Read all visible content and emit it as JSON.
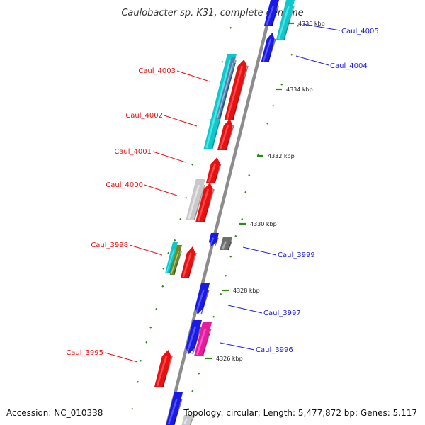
{
  "title": "Caulobacter sp. K31, complete genome",
  "footer": {
    "accession": "Accession: NC_010338",
    "summary": "Topology: circular; Length: 5,477,872 bp; Genes: 5,117"
  },
  "colors": {
    "red": "#e81010",
    "blue": "#1a1ae6",
    "cyan": "#10c8cc",
    "grey": "#c8c8c8",
    "darkgrey": "#6e6e6e",
    "magenta": "#e81c9a",
    "olive": "#6f8a22",
    "steelblue": "#5a80b0",
    "tick": "#2a8a1a",
    "backbone": "#8c8c8c"
  },
  "ticks": [
    "4336 kbp",
    "4334 kbp",
    "4332 kbp",
    "4330 kbp",
    "4328 kbp",
    "4326 kbp"
  ],
  "labels": {
    "Caul_4005": "Caul_4005",
    "Caul_4004": "Caul_4004",
    "Caul_4003": "Caul_4003",
    "Caul_4002": "Caul_4002",
    "Caul_4001": "Caul_4001",
    "Caul_4000": "Caul_4000",
    "Caul_3999": "Caul_3999",
    "Caul_3998": "Caul_3998",
    "Caul_3997": "Caul_3997",
    "Caul_3996": "Caul_3996",
    "Caul_3995": "Caul_3995"
  }
}
